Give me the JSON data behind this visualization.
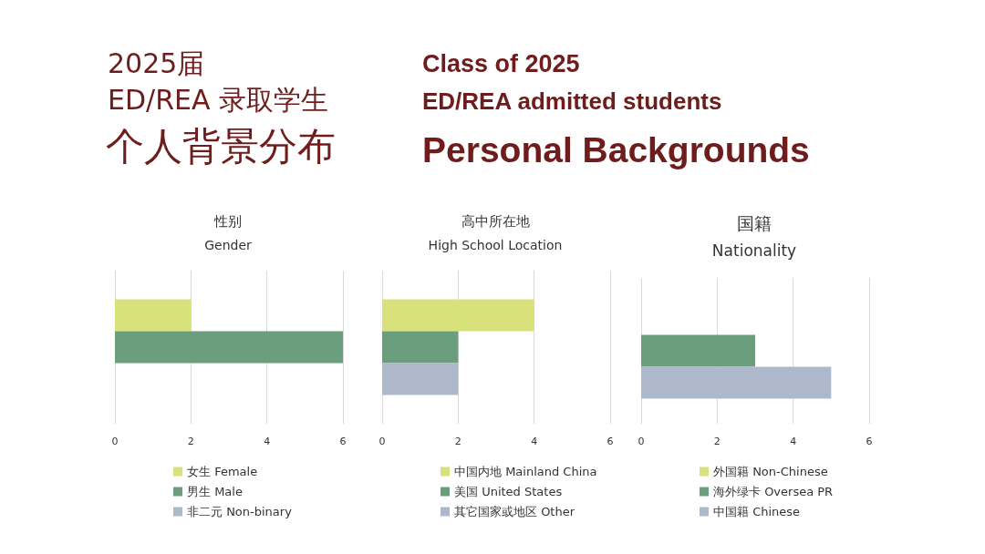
{
  "chart_data": [
    {
      "type": "bar",
      "orientation": "horizontal",
      "title": "性别",
      "subtitle": "Gender",
      "annotations": [
        "2025届",
        "ED/REA 录取学生",
        "个人背景分布",
        "Class of 2025",
        "ED/REA admitted students",
        "Personal Backgrounds"
      ],
      "categories": [
        null
      ],
      "series": [
        {
          "name": "女生 Female",
          "color": "#d9e17a",
          "values": [
            2
          ]
        },
        {
          "name": "男生 Male",
          "color": "#6b9e7d",
          "values": [
            6
          ]
        },
        {
          "name": "非二元 Non-binary",
          "color": "#adb9cb",
          "values": [
            0
          ]
        }
      ],
      "xlim": [
        0,
        6
      ],
      "xticks": [
        0,
        2,
        4,
        6
      ],
      "grid": "x",
      "legend": "bottom"
    },
    {
      "type": "bar",
      "orientation": "horizontal",
      "title": "高中所在地",
      "subtitle": "High School Location",
      "categories": [
        null
      ],
      "series": [
        {
          "name": "中国内地 Mainland China",
          "color": "#d9e17a",
          "values": [
            4
          ]
        },
        {
          "name": "美国 United States",
          "color": "#6b9e7d",
          "values": [
            2
          ]
        },
        {
          "name": "其它国家或地区 Other",
          "color": "#adb9cb",
          "values": [
            2
          ]
        }
      ],
      "xlim": [
        0,
        6
      ],
      "xticks": [
        0,
        2,
        4,
        6
      ],
      "grid": "x",
      "legend": "bottom"
    },
    {
      "type": "bar",
      "orientation": "horizontal",
      "title": "国籍",
      "subtitle": "Nationality",
      "categories": [
        null
      ],
      "series": [
        {
          "name": "外国籍 Non-Chinese",
          "color": "#d9e17a",
          "values": [
            0
          ]
        },
        {
          "name": "海外绿卡 Oversea PR",
          "color": "#6b9e7d",
          "values": [
            3
          ]
        },
        {
          "name": "中国籍 Chinese",
          "color": "#adb9cb",
          "values": [
            5
          ]
        }
      ],
      "xlim": [
        0,
        6
      ],
      "xticks": [
        0,
        2,
        4,
        6
      ],
      "grid": "x",
      "legend": "bottom"
    }
  ]
}
